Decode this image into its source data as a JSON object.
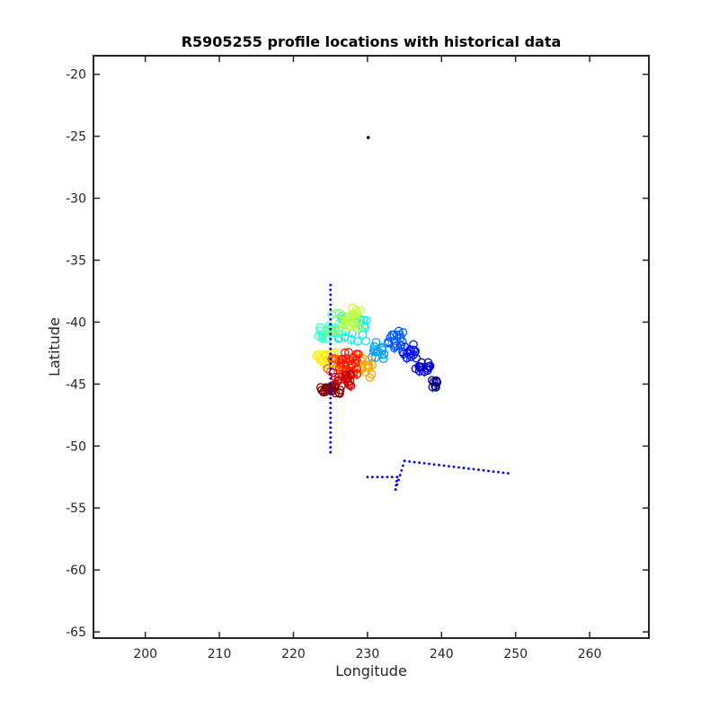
{
  "chart_data": {
    "type": "scatter",
    "title": "R5905255 profile locations with historical data",
    "xlabel": "Longitude",
    "ylabel": "Latitude",
    "xlim": [
      193,
      268
    ],
    "ylim": [
      -65.5,
      -18.5
    ],
    "xticks": [
      200,
      210,
      220,
      230,
      240,
      250,
      260
    ],
    "yticks": [
      -20,
      -25,
      -30,
      -35,
      -40,
      -45,
      -50,
      -55,
      -60,
      -65
    ],
    "grid": false,
    "legend": "none",
    "colors": {
      "axes": "#262626",
      "historical_dots": "#0000ff",
      "float_marker": "#000000"
    },
    "series": [
      {
        "marker": "dot",
        "color": "#000000",
        "points": [
          [
            230.1,
            -25.1
          ]
        ]
      },
      {
        "marker": "dot",
        "color": "#0000ff",
        "segments": [
          [
            [
              225.0,
              -37.0
            ],
            [
              225.0,
              -50.5
            ]
          ],
          [
            [
              230.0,
              -52.5
            ],
            [
              234.0,
              -52.5
            ],
            [
              233.8,
              -53.5
            ],
            [
              235.0,
              -51.2
            ],
            [
              249.0,
              -52.2
            ]
          ]
        ]
      },
      {
        "marker": "o",
        "colormap": "jet",
        "clusters": [
          {
            "lon": 239.0,
            "lat": -45.0,
            "sx": 0.4,
            "sy": 0.4,
            "n": 8
          },
          {
            "lon": 237.5,
            "lat": -43.5,
            "sx": 1.0,
            "sy": 0.6,
            "n": 14
          },
          {
            "lon": 235.5,
            "lat": -42.5,
            "sx": 1.2,
            "sy": 0.7,
            "n": 16
          },
          {
            "lon": 234.0,
            "lat": -41.3,
            "sx": 1.2,
            "sy": 0.8,
            "n": 16
          },
          {
            "lon": 231.5,
            "lat": -42.3,
            "sx": 1.2,
            "sy": 0.7,
            "n": 14
          },
          {
            "lon": 227.5,
            "lat": -40.5,
            "sx": 2.4,
            "sy": 1.1,
            "n": 20
          },
          {
            "lon": 224.5,
            "lat": -40.8,
            "sx": 1.2,
            "sy": 0.6,
            "n": 16
          },
          {
            "lon": 226.5,
            "lat": -40.0,
            "sx": 1.8,
            "sy": 1.0,
            "n": 20
          },
          {
            "lon": 228.0,
            "lat": -39.6,
            "sx": 1.2,
            "sy": 0.9,
            "n": 16
          },
          {
            "lon": 224.5,
            "lat": -43.0,
            "sx": 1.4,
            "sy": 0.6,
            "n": 18
          },
          {
            "lon": 229.5,
            "lat": -43.6,
            "sx": 1.2,
            "sy": 0.9,
            "n": 16
          },
          {
            "lon": 226.0,
            "lat": -43.5,
            "sx": 1.5,
            "sy": 0.7,
            "n": 18
          },
          {
            "lon": 227.5,
            "lat": -43.3,
            "sx": 1.3,
            "sy": 0.9,
            "n": 22
          },
          {
            "lon": 226.5,
            "lat": -44.6,
            "sx": 1.5,
            "sy": 0.6,
            "n": 22
          },
          {
            "lon": 225.0,
            "lat": -45.5,
            "sx": 1.5,
            "sy": 0.3,
            "n": 20
          }
        ]
      }
    ]
  }
}
